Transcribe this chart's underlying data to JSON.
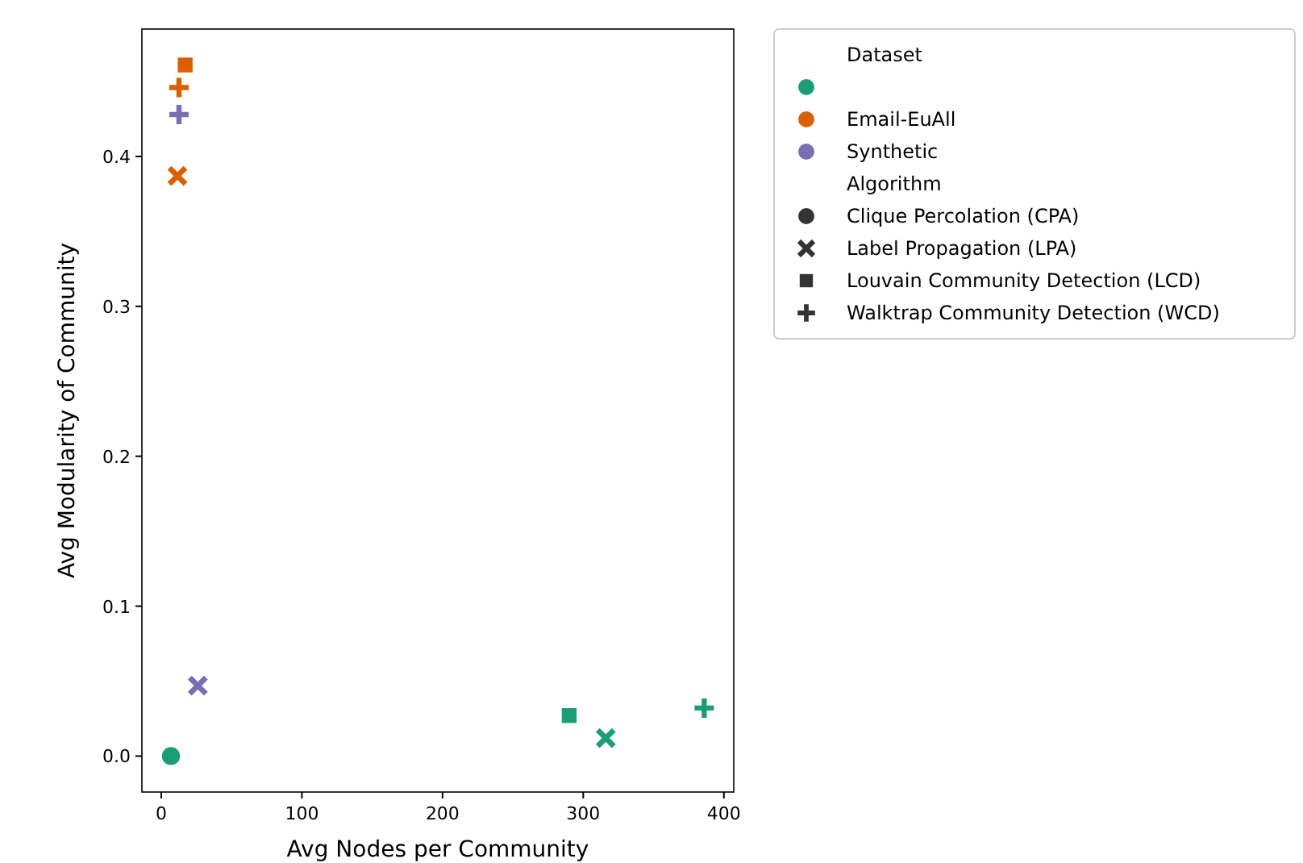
{
  "chart_data": {
    "type": "scatter",
    "xlabel": "Avg Nodes per Community",
    "ylabel": "Avg Modularity of Community",
    "xlim": [
      -13.75,
      407
    ],
    "xticks": [
      0,
      100,
      200,
      300,
      400
    ],
    "ylim": [
      -0.024,
      0.485
    ],
    "yticks": [
      {
        "value": 0,
        "label": "0.0"
      },
      {
        "value": 0.1,
        "label": "0.1"
      },
      {
        "value": 0.2,
        "label": "0.2"
      },
      {
        "value": 0.3,
        "label": "0.3"
      },
      {
        "value": 0.4,
        "label": "0.4"
      }
    ],
    "legend": "right",
    "legend_title": "Dataset",
    "annotations": [
      "Algorithm",
      "Clique Percolation (CPA)",
      "Label Propagation (LPA)",
      "Louvain Community Detection (LCD)",
      "Walktrap Community Detection (WCD)"
    ],
    "series": [
      {
        "name": null,
        "color": "#1b9e77",
        "marker": "circle",
        "x": [
          6.9
        ],
        "values": [
          0.0
        ]
      },
      {
        "name": null,
        "color": "#1b9e77",
        "marker": "cross",
        "x": [
          316
        ],
        "values": [
          0.012
        ]
      },
      {
        "name": null,
        "color": "#1b9e77",
        "marker": "square",
        "x": [
          290
        ],
        "values": [
          0.027
        ]
      },
      {
        "name": null,
        "color": "#1b9e77",
        "marker": "plus",
        "x": [
          386
        ],
        "values": [
          0.032
        ]
      },
      {
        "name": "Email-EuAll",
        "color": "#d95f02",
        "marker": "cross",
        "x": [
          11.5
        ],
        "values": [
          0.387
        ]
      },
      {
        "name": null,
        "color": "#d95f02",
        "marker": "square",
        "x": [
          17
        ],
        "values": [
          0.461
        ]
      },
      {
        "name": null,
        "color": "#d95f02",
        "marker": "plus",
        "x": [
          12.6
        ],
        "values": [
          0.446
        ]
      },
      {
        "name": "Synthetic",
        "color": "#7570b3",
        "marker": "cross",
        "x": [
          26
        ],
        "values": [
          0.047
        ]
      },
      {
        "name": null,
        "color": "#7570b3",
        "marker": "plus",
        "x": [
          12.6
        ],
        "values": [
          0.428
        ]
      }
    ]
  }
}
